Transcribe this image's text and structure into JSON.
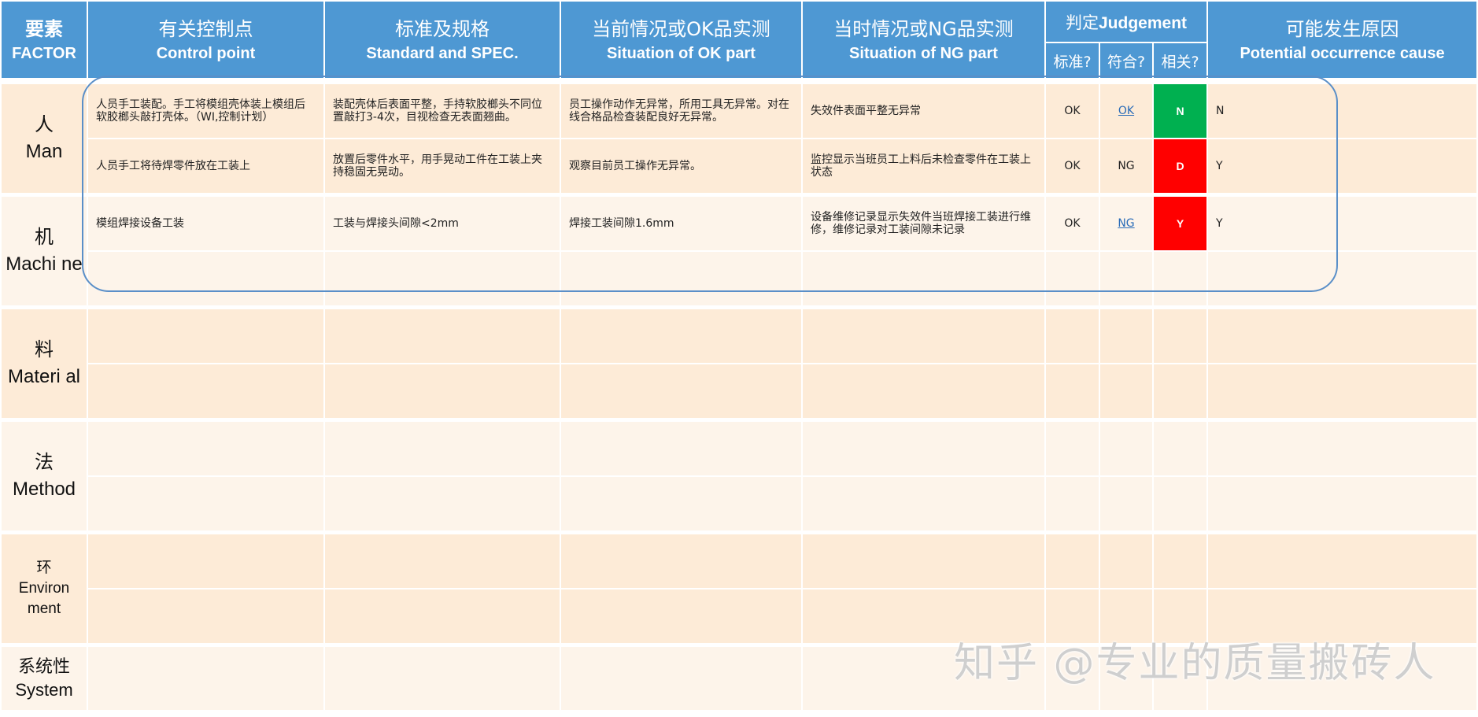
{
  "header": {
    "factor": {
      "cn": "要素",
      "en": "FACTOR"
    },
    "control_point": {
      "cn": "有关控制点",
      "en": "Control point"
    },
    "standard": {
      "cn": "标准及规格",
      "en": "Standard and SPEC."
    },
    "ok_part": {
      "cn": "当前情况或OK品实测",
      "en": "Situation of OK part"
    },
    "ng_part": {
      "cn": "当时情况或NG品实测",
      "en": "Situation of NG part"
    },
    "judgement": {
      "cn": "判定",
      "en": "Judgement",
      "sub": [
        "标准?",
        "符合?",
        "相关?"
      ]
    },
    "cause": {
      "cn": "可能发生原因",
      "en": "Potential occurrence cause"
    }
  },
  "factors": [
    {
      "cn": "人",
      "en": "Man"
    },
    {
      "cn": "机",
      "en": "Machi ne"
    },
    {
      "cn": "料",
      "en": "Materi al"
    },
    {
      "cn": "法",
      "en": "Method"
    },
    {
      "cn": "环",
      "en": "Environ ment"
    },
    {
      "cn": "系统性",
      "en": "System"
    }
  ],
  "rows": [
    {
      "control": "人员手工装配。手工将模组壳体装上模组后软胶榔头敲打壳体。（WI,控制计划）",
      "standard": "装配壳体后表面平整，手持软胶榔头不同位置敲打3-4次，目视检查无表面翘曲。",
      "ok": "员工操作动作无异常，所用工具无异常。对在线合格品检查装配良好无异常。",
      "ng": "失效件表面平整无异常",
      "std": "OK",
      "conform": "OK",
      "conform_link": true,
      "related": "N",
      "related_color": "#00B050",
      "cause": "N"
    },
    {
      "control": "人员手工将待焊零件放在工装上",
      "standard": "放置后零件水平，用手晃动工件在工装上夹持稳固无晃动。",
      "ok": "观察目前员工操作无异常。",
      "ng": "监控显示当班员工上料后未检查零件在工装上状态",
      "std": "OK",
      "conform": "NG",
      "conform_link": false,
      "related": "D",
      "related_color": "#FF0000",
      "cause": "Y"
    },
    {
      "control": "模组焊接设备工装",
      "standard": "工装与焊接头间隙<2mm",
      "ok": "焊接工装间隙1.6mm",
      "ng": "设备维修记录显示失效件当班焊接工装进行维修，维修记录对工装间隙未记录",
      "std": "OK",
      "conform": "NG",
      "conform_link": true,
      "related": "Y",
      "related_color": "#FF0000",
      "cause": "Y"
    }
  ],
  "watermark": "知乎 @专业的质量搬砖人"
}
